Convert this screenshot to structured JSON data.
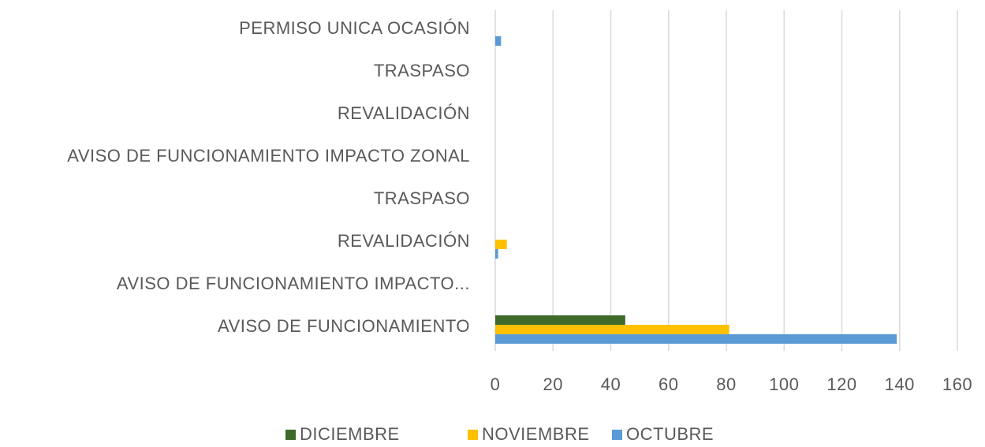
{
  "chart_data": {
    "type": "bar",
    "orientation": "horizontal",
    "categories": [
      "AVISO DE FUNCIONAMIENTO",
      "AVISO DE FUNCIONAMIENTO IMPACTO...",
      "REVALIDACIÓN",
      "TRASPASO",
      "AVISO DE FUNCIONAMIENTO IMPACTO ZONAL",
      "REVALIDACIÓN",
      "TRASPASO",
      "PERMISO UNICA OCASIÓN"
    ],
    "series": [
      {
        "name": "DICIEMBRE",
        "color": "#3f6b2a",
        "values": [
          45,
          0,
          0,
          0,
          0,
          0,
          0,
          0
        ]
      },
      {
        "name": "NOVIEMBRE",
        "color": "#ffc000",
        "values": [
          81,
          0,
          4,
          0,
          0,
          0,
          0,
          0
        ]
      },
      {
        "name": "OCTUBRE",
        "color": "#5b9bd5",
        "values": [
          139,
          0,
          1,
          0,
          0,
          0,
          0,
          2
        ]
      }
    ],
    "xlim": [
      0,
      160
    ],
    "xticks": [
      0,
      20,
      40,
      60,
      80,
      100,
      120,
      140,
      160
    ],
    "grid": true,
    "legend": "bottom"
  }
}
